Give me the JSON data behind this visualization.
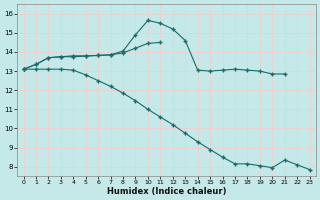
{
  "xlabel": "Humidex (Indice chaleur)",
  "bg_color": "#c5e8e8",
  "grid_color": "#f0d0d0",
  "line_color": "#1a6b6b",
  "xlim": [
    -0.5,
    23.5
  ],
  "ylim": [
    7.5,
    16.5
  ],
  "xticks": [
    0,
    1,
    2,
    3,
    4,
    5,
    6,
    7,
    8,
    9,
    10,
    11,
    12,
    13,
    14,
    15,
    16,
    17,
    18,
    19,
    20,
    21,
    22,
    23
  ],
  "yticks": [
    8,
    9,
    10,
    11,
    12,
    13,
    14,
    15,
    16
  ],
  "s1_x": [
    0,
    1,
    2,
    3,
    4,
    5,
    6,
    7,
    8,
    9,
    10,
    11,
    12,
    13,
    14,
    15,
    16,
    17,
    18,
    19,
    20,
    21
  ],
  "s1_y": [
    13.1,
    13.35,
    13.7,
    13.75,
    13.8,
    13.8,
    13.82,
    13.85,
    14.05,
    14.9,
    15.65,
    15.5,
    15.2,
    14.6,
    13.05,
    13.0,
    13.05,
    13.1,
    13.05,
    13.0,
    12.85,
    12.85
  ],
  "s2_x": [
    0,
    1,
    2,
    3,
    4,
    5,
    6,
    7,
    8,
    9,
    10,
    11
  ],
  "s2_y": [
    13.1,
    13.35,
    13.7,
    13.75,
    13.75,
    13.78,
    13.82,
    13.85,
    13.95,
    14.2,
    14.45,
    14.5
  ],
  "s3_x": [
    0,
    1,
    2,
    3,
    4,
    5,
    6,
    7,
    8,
    9,
    10,
    11,
    12,
    13,
    14,
    15,
    16,
    17,
    18,
    19,
    20,
    21,
    22,
    23
  ],
  "s3_y": [
    13.1,
    13.1,
    13.1,
    13.1,
    13.05,
    12.8,
    12.5,
    12.2,
    11.85,
    11.45,
    11.0,
    10.6,
    10.2,
    9.75,
    9.3,
    8.9,
    8.5,
    8.15,
    8.15,
    8.05,
    7.95,
    8.35,
    8.1,
    7.85
  ]
}
